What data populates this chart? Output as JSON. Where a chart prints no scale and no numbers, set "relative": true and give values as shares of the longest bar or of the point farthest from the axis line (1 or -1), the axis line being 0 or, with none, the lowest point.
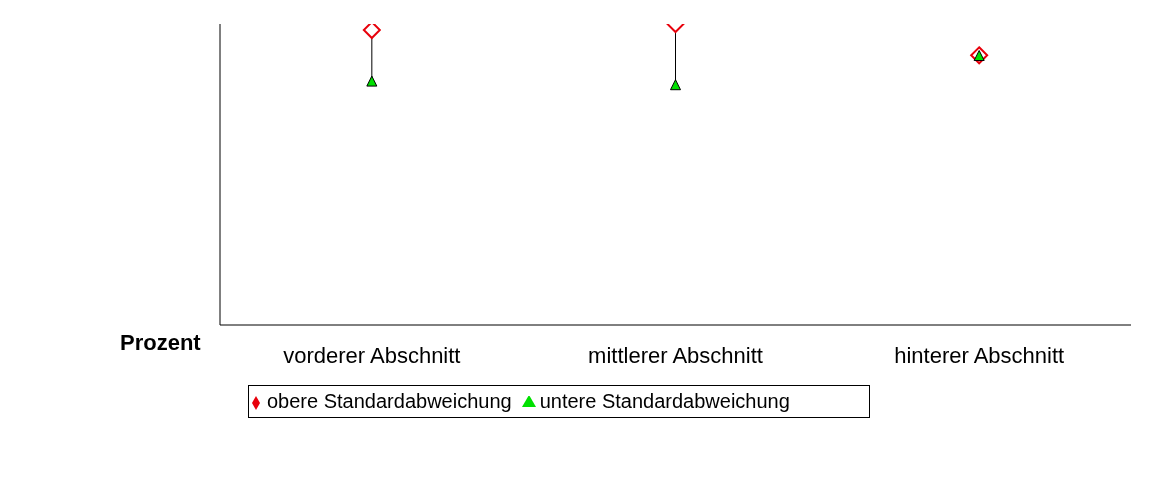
{
  "chart_data": {
    "type": "scatter",
    "ylabel": "Prozent",
    "categories": [
      "vorderer Abschnitt",
      "mittlerer Abschnitt",
      "hinterer Abschnitt"
    ],
    "relative": true,
    "legend": "bottom",
    "grid": false,
    "series": [
      {
        "name": "obere Standardabweichung",
        "color": "#e8000b",
        "marker": "diamond",
        "values": [
          0.98,
          1,
          0.896
        ]
      },
      {
        "name": "untere Standardabweichung",
        "color": "#00e000",
        "marker": "triangle",
        "values": [
          0.807,
          0.795,
          0.892
        ]
      }
    ]
  }
}
